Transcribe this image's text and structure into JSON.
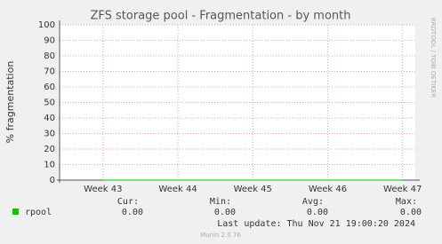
{
  "chart_data": {
    "type": "line",
    "title": "ZFS storage pool - Fragmentation - by month",
    "y_label": "% fragmentation",
    "side_text": "RRDTOOL / TOBI OETIKER",
    "x": [
      43,
      44,
      45,
      46,
      47
    ],
    "xlim": [
      42.42,
      47.17
    ],
    "xticks": [
      {
        "value": 43,
        "label": "Week 43"
      },
      {
        "value": 44,
        "label": "Week 44"
      },
      {
        "value": 45,
        "label": "Week 45"
      },
      {
        "value": 46,
        "label": "Week 46"
      },
      {
        "value": 47,
        "label": "Week 47"
      }
    ],
    "ylim": [
      0,
      100
    ],
    "yticks": [
      0,
      10,
      20,
      30,
      40,
      50,
      60,
      70,
      80,
      90,
      100
    ],
    "grid": true,
    "series": [
      {
        "name": "rpool",
        "color": "#00cc00",
        "values": [
          0,
          0,
          0,
          0,
          0
        ]
      }
    ],
    "stat_headers": [
      "Cur:",
      "Min:",
      "Avg:",
      "Max:"
    ],
    "stat_values": [
      "0.00",
      "0.00",
      "0.00",
      "0.00"
    ],
    "last_update": "Last update: Thu Nov 21 19:00:20 2024",
    "footer": "Munin 2.0.76"
  }
}
